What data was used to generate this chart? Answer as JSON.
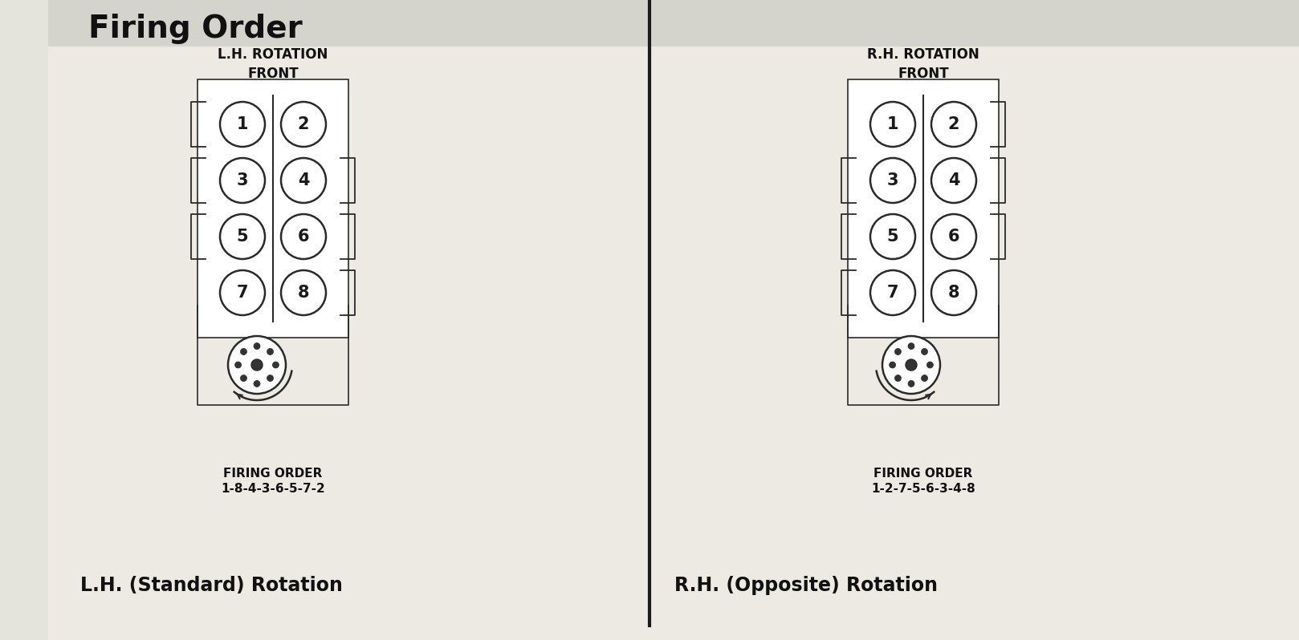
{
  "title": "Firing Order",
  "bg_color": "#e8e8e2",
  "title_bg": "#d0d0c8",
  "line_color": "#2a2a2a",
  "lh_rotation_label": "L.H. ROTATION\nFRONT",
  "rh_rotation_label": "R.H. ROTATION\nFRONT",
  "lh_firing_order_label": "FIRING ORDER\n1-8-4-3-6-5-7-2",
  "rh_firing_order_label": "FIRING ORDER\n1-2-7-5-6-3-4-8",
  "lh_bottom_label": "L.H. (Standard) Rotation",
  "rh_bottom_label": "R.H. (Opposite) Rotation"
}
